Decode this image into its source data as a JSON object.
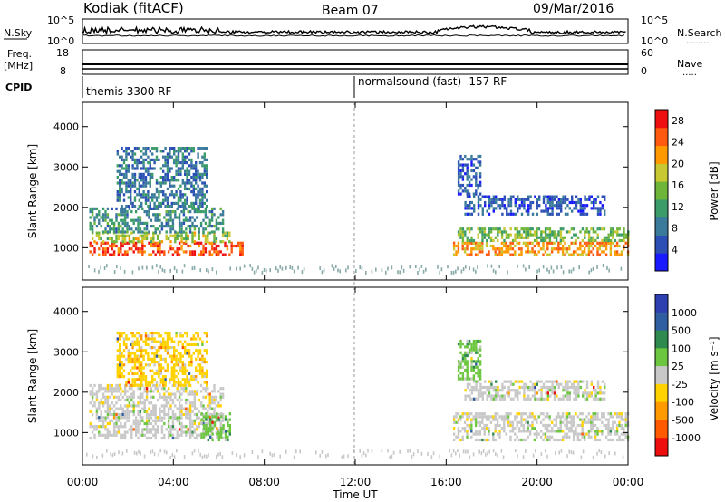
{
  "header": {
    "station": "Kodiak (fitACF)",
    "beam": "Beam 07",
    "date": "09/Mar/2016"
  },
  "panels": {
    "nsky": {
      "left_label": "N.Sky",
      "left_ticks": [
        "10^5",
        "10^0"
      ],
      "right_ticks": [
        "10^5",
        "10^0"
      ],
      "right_label": "N.Search",
      "right_dots": "........"
    },
    "freq": {
      "left_label_1": "Freq.",
      "left_label_2": "[MHz]",
      "left_ticks": [
        "18",
        "8"
      ],
      "right_ticks": [
        "60",
        "0"
      ],
      "right_label": "Nave",
      "right_dots": "....."
    },
    "cpid": {
      "label": "CPID",
      "segments": [
        "themis 3300 RF",
        "normalsound (fast) -157 RF"
      ]
    }
  },
  "chart_data": [
    {
      "type": "heatmap",
      "name": "power",
      "ylabel": "Slant Range [km]",
      "y_ticks": [
        "1000",
        "2000",
        "3000",
        "4000"
      ],
      "ylim": [
        200,
        4600
      ],
      "xlim": [
        0,
        24
      ],
      "colorbar": {
        "label": "Power [dB]",
        "ticks": [
          "4",
          "8",
          "12",
          "16",
          "20",
          "24",
          "28"
        ],
        "range": [
          0,
          30
        ],
        "colors": [
          "#1a1aff",
          "#2b4fb5",
          "#3a7a9a",
          "#3b9c6a",
          "#6fb53a",
          "#c8c832",
          "#ff9900",
          "#ff5a10",
          "#ee1010"
        ]
      },
      "regions": [
        {
          "x": [
            0.3,
            7.0
          ],
          "y": [
            850,
            1150
          ],
          "level": 26
        },
        {
          "x": [
            0.3,
            6.5
          ],
          "y": [
            1150,
            1400
          ],
          "level": 17
        },
        {
          "x": [
            0.3,
            6.2
          ],
          "y": [
            1400,
            2000
          ],
          "level": 10
        },
        {
          "x": [
            1.5,
            5.5
          ],
          "y": [
            2000,
            3500
          ],
          "level": 8
        },
        {
          "x": [
            16.3,
            24.0
          ],
          "y": [
            850,
            1150
          ],
          "level": 22
        },
        {
          "x": [
            16.5,
            24.0
          ],
          "y": [
            1150,
            1500
          ],
          "level": 14
        },
        {
          "x": [
            16.8,
            23.0
          ],
          "y": [
            1800,
            2300
          ],
          "level": 6
        },
        {
          "x": [
            16.5,
            17.5
          ],
          "y": [
            2300,
            3300
          ],
          "level": 6
        }
      ]
    },
    {
      "type": "heatmap",
      "name": "velocity",
      "ylabel": "Slant Range [km]",
      "y_ticks": [
        "1000",
        "2000",
        "3000",
        "4000"
      ],
      "ylim": [
        200,
        4600
      ],
      "xlim": [
        0,
        24
      ],
      "xlabel": "Time UT",
      "x_ticks": [
        "00:00",
        "04:00",
        "08:00",
        "12:00",
        "16:00",
        "20:00",
        "00:00"
      ],
      "colorbar": {
        "label": "Velocity [m s⁻¹]",
        "ticks": [
          "1000",
          "500",
          "100",
          "25",
          "-25",
          "-100",
          "-500",
          "-1000"
        ],
        "colors": [
          "#2e3fb0",
          "#2f5fa0",
          "#2e8a4e",
          "#6cc640",
          "#c8c8c8",
          "#ffd200",
          "#ff9a00",
          "#ff5a00",
          "#ee0e0e"
        ]
      },
      "regions": [
        {
          "x": [
            0.3,
            6.2
          ],
          "y": [
            850,
            1400
          ],
          "class": 4
        },
        {
          "x": [
            0.3,
            6.2
          ],
          "y": [
            1400,
            2200
          ],
          "class": 4
        },
        {
          "x": [
            1.5,
            5.5
          ],
          "y": [
            2200,
            3500
          ],
          "class": 5
        },
        {
          "x": [
            5.2,
            6.5
          ],
          "y": [
            850,
            1500
          ],
          "class": 3
        },
        {
          "x": [
            16.3,
            24.0
          ],
          "y": [
            850,
            1500
          ],
          "class": 4
        },
        {
          "x": [
            16.8,
            23.0
          ],
          "y": [
            1800,
            2300
          ],
          "class": 4
        },
        {
          "x": [
            16.5,
            17.5
          ],
          "y": [
            2300,
            3300
          ],
          "class": 3
        }
      ]
    }
  ]
}
